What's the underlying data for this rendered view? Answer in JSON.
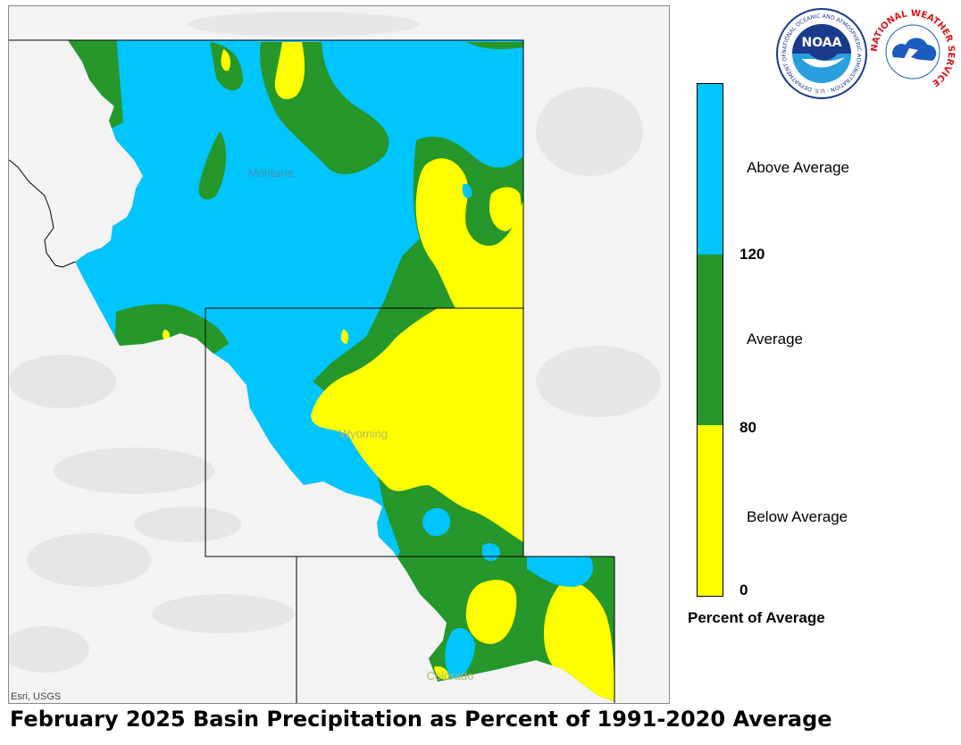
{
  "title": "February 2025 Basin Precipitation as Percent of 1991-2020 Average",
  "attribution": "Esri, USGS",
  "states": [
    {
      "name": "Montana"
    },
    {
      "name": "Wyoming"
    },
    {
      "name": "Colorado"
    }
  ],
  "legend": {
    "title": "Percent of Average",
    "categories": [
      {
        "label": "Above Average",
        "color": "#00c5ff"
      },
      {
        "label": "Average",
        "color": "#26972a"
      },
      {
        "label": "Below Average",
        "color": "#ffff00"
      }
    ],
    "ticks": [
      "120",
      "80",
      "0"
    ]
  },
  "logos": {
    "noaa": {
      "wordmark": "NOAA",
      "ring_text": "NATIONAL OCEANIC AND ATMOSPHERIC ADMINISTRATION · U.S. DEPARTMENT OF COMMERCE",
      "colors": {
        "dark": "#1b3a8c",
        "light": "#2a9fe0"
      }
    },
    "nws": {
      "ring_text": "NATIONAL WEATHER SERVICE",
      "colors": {
        "red": "#d9141b",
        "blue": "#1a5dbf"
      }
    }
  }
}
